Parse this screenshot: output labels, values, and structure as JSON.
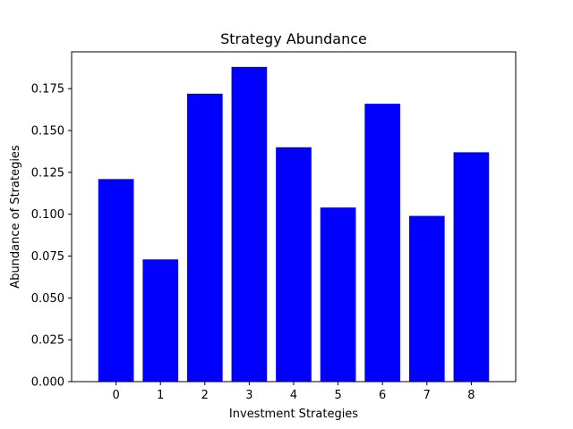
{
  "chart_data": {
    "type": "bar",
    "title": "Strategy Abundance",
    "xlabel": "Investment Strategies",
    "ylabel": "Abundance of Strategies",
    "categories": [
      "0",
      "1",
      "2",
      "3",
      "4",
      "5",
      "6",
      "7",
      "8"
    ],
    "values": [
      0.121,
      0.073,
      0.172,
      0.188,
      0.14,
      0.104,
      0.166,
      0.099,
      0.137
    ],
    "ylim": [
      0,
      0.197
    ],
    "yticks": [
      "0.000",
      "0.025",
      "0.050",
      "0.075",
      "0.100",
      "0.125",
      "0.150",
      "0.175"
    ],
    "grid": false,
    "colors": {
      "bar": "#0000ff",
      "axis": "#000000",
      "background": "#ffffff"
    }
  }
}
